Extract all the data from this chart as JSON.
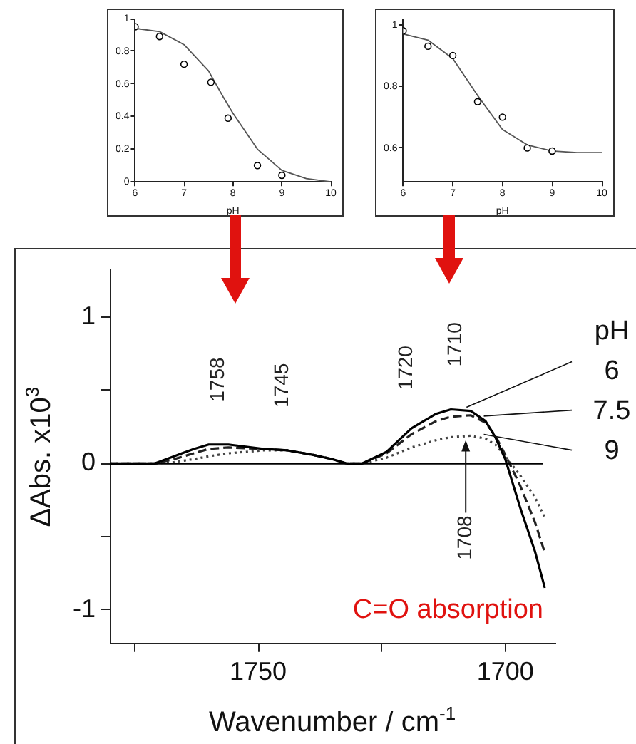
{
  "chart_data": [
    {
      "type": "scatter",
      "xlabel": "pH",
      "xlim": [
        6,
        10
      ],
      "xticks": [
        6,
        7,
        8,
        9,
        10
      ],
      "ylim": [
        0,
        1
      ],
      "yticks": [
        0,
        0.2,
        0.4,
        0.6,
        0.8,
        1
      ],
      "grid": false,
      "legend": false,
      "series": [
        {
          "color": "#000000",
          "marker": "circle",
          "x": [
            6,
            6.5,
            7,
            7.55,
            7.9,
            8.5,
            9
          ],
          "values": [
            0.95,
            0.89,
            0.72,
            0.61,
            0.39,
            0.1,
            0.04
          ]
        },
        {
          "type": "line",
          "marker": "none",
          "color": "#555555",
          "x": [
            6,
            6.5,
            7,
            7.5,
            7.8,
            8,
            8.5,
            9,
            9.5,
            10
          ],
          "values": [
            0.94,
            0.92,
            0.84,
            0.68,
            0.52,
            0.42,
            0.2,
            0.07,
            0.02,
            0
          ]
        }
      ]
    },
    {
      "type": "scatter",
      "xlabel": "pH",
      "xlim": [
        6,
        10
      ],
      "xticks": [
        6,
        7,
        8,
        9,
        10
      ],
      "ylim": [
        0.49,
        1.02
      ],
      "yticks": [
        0.6,
        0.8,
        1
      ],
      "grid": false,
      "legend": false,
      "series": [
        {
          "color": "#000000",
          "marker": "circle",
          "x": [
            6,
            6.5,
            7,
            7.5,
            8,
            8.5,
            9
          ],
          "values": [
            0.98,
            0.93,
            0.9,
            0.75,
            0.7,
            0.6,
            0.59
          ]
        },
        {
          "type": "line",
          "marker": "none",
          "color": "#555555",
          "x": [
            6,
            6.5,
            7,
            7.5,
            8,
            8.5,
            9,
            9.5,
            10
          ],
          "values": [
            0.97,
            0.95,
            0.89,
            0.77,
            0.66,
            0.61,
            0.59,
            0.585,
            0.585
          ]
        }
      ]
    },
    {
      "type": "line",
      "xlabel": "Wavenumber / cm$^{-1}$",
      "ylabel": "ΔAbs. x10$^{3}$",
      "legend_title": "pH",
      "legend": "right",
      "grid": false,
      "xlim": [
        1780,
        1690
      ],
      "xticks": [
        {
          "value": 1775,
          "label": null
        },
        1750,
        {
          "value": 1725,
          "label": null
        },
        1700
      ],
      "ylim": [
        -1.23,
        1.32
      ],
      "yticks": [
        -1,
        {
          "value": -0.5,
          "label": null
        },
        0,
        {
          "value": 0.5,
          "label": null
        },
        1
      ],
      "x": [
        1780,
        1771,
        1767,
        1763,
        1760,
        1756,
        1749,
        1744,
        1739,
        1735,
        1732,
        1729,
        1724,
        1719,
        1714,
        1711,
        1707,
        1704,
        1702,
        1700,
        1697,
        1694,
        1692
      ],
      "series": [
        {
          "name": "6",
          "color": "#000000",
          "line_style": "solid",
          "values": [
            0,
            0,
            0.05,
            0.1,
            0.13,
            0.13,
            0.1,
            0.09,
            0.06,
            0.03,
            0,
            0,
            0.08,
            0.24,
            0.34,
            0.37,
            0.36,
            0.29,
            0.18,
            0.03,
            -0.3,
            -0.6,
            -0.85
          ]
        },
        {
          "name": "7.5",
          "color": "#222222",
          "line_style": "dashed",
          "values": [
            0,
            0,
            0.03,
            0.07,
            0.1,
            0.11,
            0.1,
            0.09,
            0.06,
            0.03,
            0,
            0,
            0.07,
            0.2,
            0.29,
            0.32,
            0.33,
            0.28,
            0.19,
            0.06,
            -0.15,
            -0.4,
            -0.61
          ]
        },
        {
          "name": "9",
          "color": "#444444",
          "line_style": "dotted",
          "values": [
            0,
            0,
            0.01,
            0.03,
            0.05,
            0.07,
            0.09,
            0.09,
            0.06,
            0.03,
            0,
            0,
            0.04,
            0.11,
            0.16,
            0.18,
            0.19,
            0.17,
            0.13,
            0.05,
            -0.08,
            -0.23,
            -0.37
          ]
        }
      ],
      "ref_lines": [
        {
          "axis": "y",
          "value": 0
        }
      ],
      "annotations": [
        {
          "text": "1758",
          "x": 1758,
          "y": 0.13
        },
        {
          "text": "1745",
          "x": 1745,
          "y": 0.09
        },
        {
          "text": "1720",
          "x": 1720,
          "y": 0.21
        },
        {
          "text": "1710",
          "x": 1710,
          "y": 0.37
        },
        {
          "text": "1708",
          "x": 1708,
          "y": 0.19
        },
        "C=O absorption"
      ]
    }
  ]
}
